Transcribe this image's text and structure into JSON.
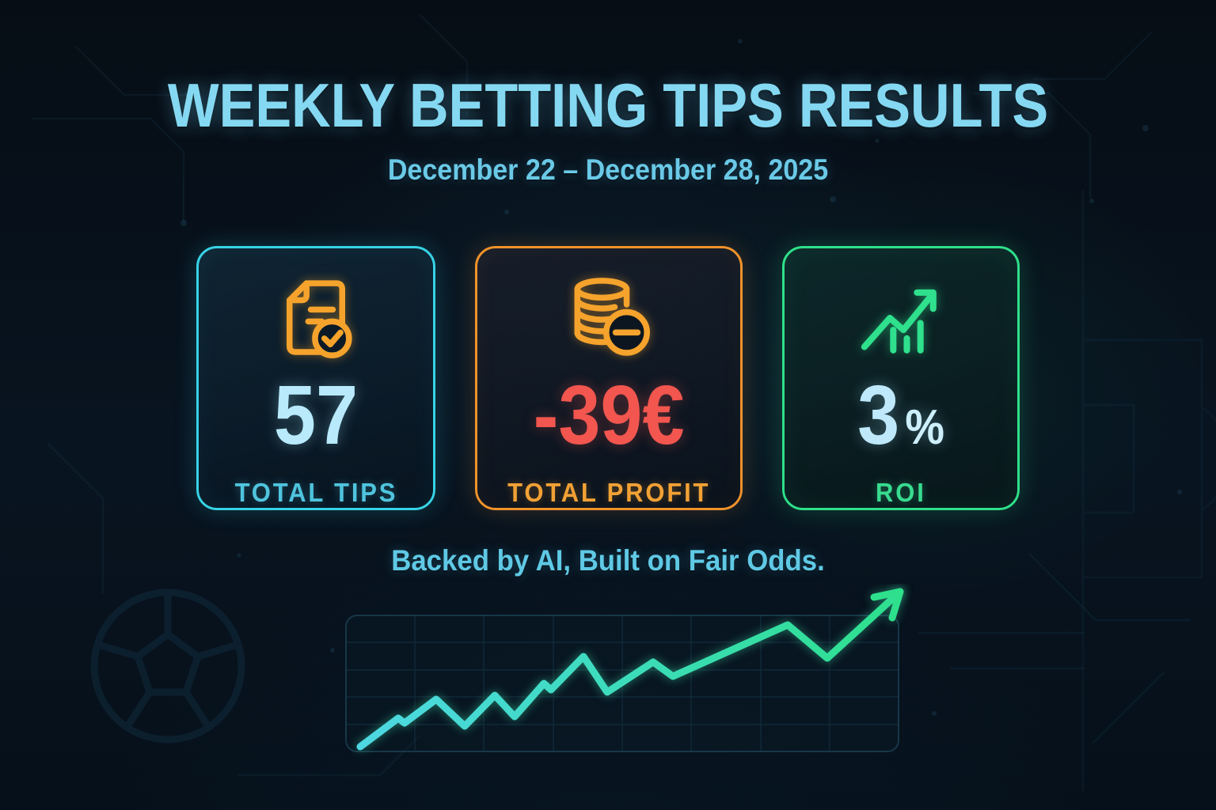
{
  "header": {
    "title": "WEEKLY BETTING TIPS RESULTS",
    "date_range": "December 22 – December 28, 2025"
  },
  "cards": [
    {
      "id": "total-tips",
      "icon": "document-check-icon",
      "value": "57",
      "label": "TOTAL TIPS",
      "accent_color": "#37d3e6",
      "value_color": "#b8eafb",
      "label_color": "#4fc4de",
      "icon_color": "#f5a32c"
    },
    {
      "id": "total-profit",
      "icon": "coins-minus-icon",
      "value": "-39€",
      "label": "TOTAL PROFIT",
      "accent_color": "#f0922b",
      "value_color": "#f2564f",
      "label_color": "#f2a135",
      "icon_color": "#f5a32c"
    },
    {
      "id": "roi",
      "icon": "trend-up-icon",
      "value": "3",
      "value_suffix": "%",
      "label": "ROI",
      "accent_color": "#2ee08a",
      "value_color": "#bfe9fb",
      "label_color": "#38db90",
      "icon_color": "#2fe08d"
    }
  ],
  "tagline": "Backed by AI, Built on Fair Odds.",
  "chart_data": {
    "type": "line",
    "title": "",
    "xlabel": "",
    "ylabel": "",
    "axes_labeled": false,
    "grid": true,
    "description": "Decorative cumulative-profit trend line rising left to right, cyan fading to green, ending in an up-right arrow",
    "line_gradient": [
      "#4ed8e2",
      "#3cdcba",
      "#2ee08c"
    ],
    "values": [
      6,
      42,
      36,
      66,
      32,
      71,
      44,
      86,
      78,
      120,
      75,
      113,
      95,
      160,
      118,
      202
    ],
    "render_points": [
      [
        22,
        206
      ],
      [
        70,
        170
      ],
      [
        78,
        176
      ],
      [
        118,
        146
      ],
      [
        154,
        180
      ],
      [
        192,
        141
      ],
      [
        217,
        168
      ],
      [
        254,
        126
      ],
      [
        263,
        134
      ],
      [
        304,
        92
      ],
      [
        334,
        137
      ],
      [
        392,
        99
      ],
      [
        417,
        117
      ],
      [
        562,
        52
      ],
      [
        612,
        94
      ],
      [
        704,
        10
      ]
    ]
  },
  "colors": {
    "background": "#081420",
    "title": "#85d8f2",
    "subtitle": "#6ac9e7",
    "tagline": "#5fc9e5"
  }
}
